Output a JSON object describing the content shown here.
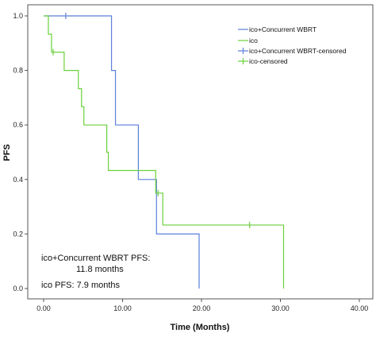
{
  "chart_data": {
    "type": "line",
    "subtype": "kaplan-meier",
    "xlabel": "Time (Months)",
    "ylabel": "PFS",
    "xlim": [
      0,
      40
    ],
    "ylim": [
      0,
      1
    ],
    "xticks": [
      "0.00",
      "10.00",
      "20.00",
      "30.00",
      "40.00"
    ],
    "yticks": [
      "0.0",
      "0.2",
      "0.4",
      "0.6",
      "0.8",
      "1.0"
    ],
    "grid": false,
    "legend_position": "top-right",
    "legend": [
      "ico+Concurrent WBRT",
      "ico",
      "ico+Concurrent WBRT-censored",
      "ico-censored"
    ],
    "series": [
      {
        "name": "ico+Concurrent WBRT",
        "color": "#5b7fdb",
        "steps": [
          [
            0,
            1.0
          ],
          [
            8.6,
            0.8
          ],
          [
            9.1,
            0.6
          ],
          [
            12.0,
            0.4
          ],
          [
            14.3,
            0.2
          ],
          [
            19.7,
            0.0
          ]
        ],
        "censored": [
          [
            2.8,
            1.0
          ]
        ]
      },
      {
        "name": "ico",
        "color": "#6ad13a",
        "steps": [
          [
            0,
            1.0
          ],
          [
            0.6,
            0.933
          ],
          [
            1.0,
            0.867
          ],
          [
            2.6,
            0.8
          ],
          [
            4.4,
            0.733
          ],
          [
            4.8,
            0.667
          ],
          [
            5.1,
            0.6
          ],
          [
            8.0,
            0.5
          ],
          [
            8.2,
            0.433
          ],
          [
            14.2,
            0.35
          ],
          [
            15.1,
            0.233
          ],
          [
            30.4,
            0.0
          ]
        ],
        "censored": [
          [
            1.2,
            0.867
          ],
          [
            14.5,
            0.35
          ],
          [
            26.1,
            0.233
          ]
        ]
      }
    ],
    "annotations": [
      "ico+Concurrent WBRT PFS:",
      "11.8 months",
      "ico PFS: 7.9 months"
    ]
  }
}
